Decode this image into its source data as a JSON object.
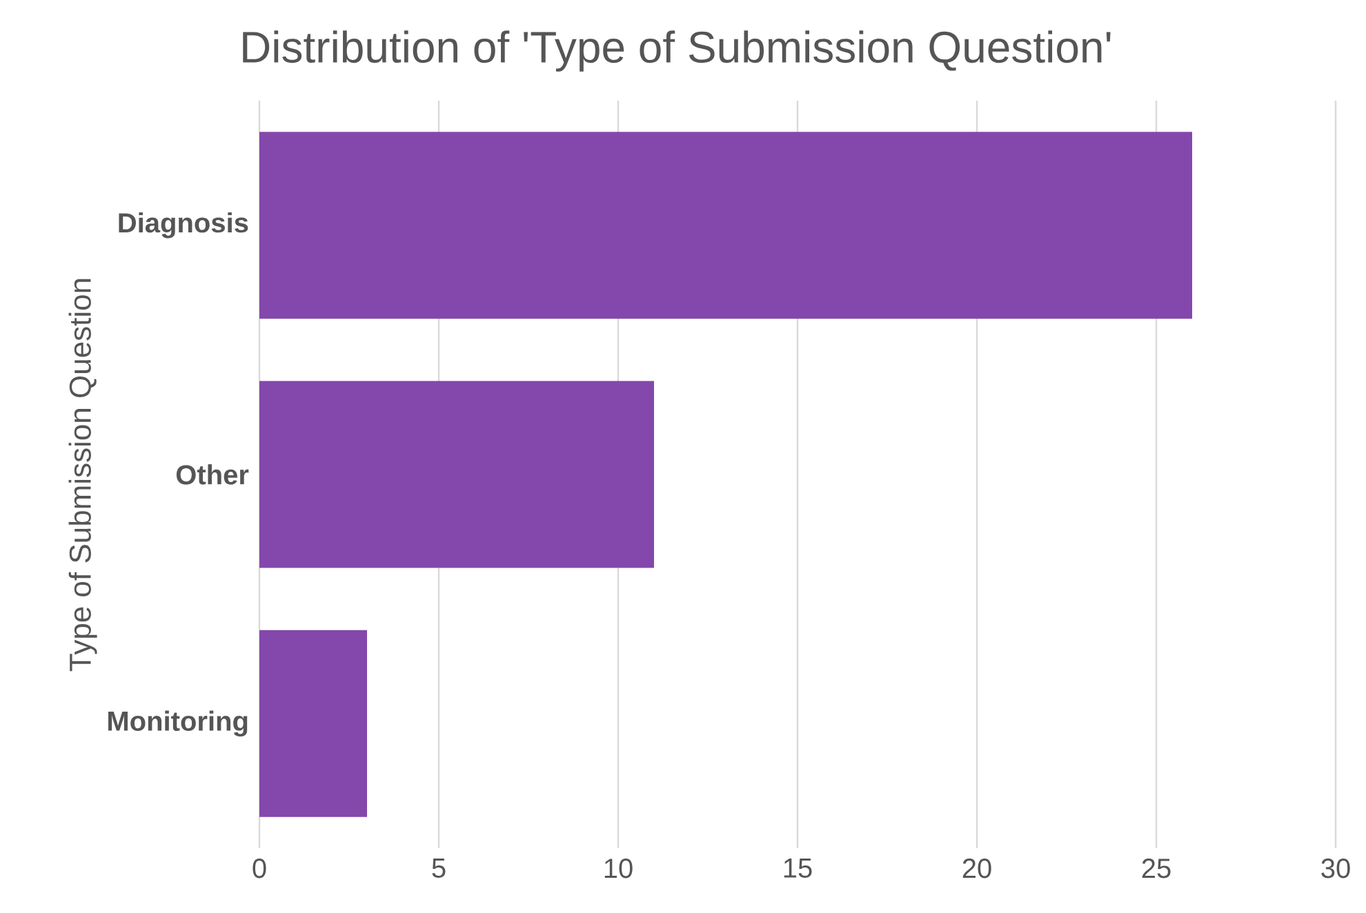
{
  "chart_data": {
    "type": "bar",
    "orientation": "horizontal",
    "title": "Distribution of 'Type of Submission Question'",
    "ylabel": "Type of Submission Question",
    "categories": [
      "Diagnosis",
      "Other",
      "Monitoring"
    ],
    "values": [
      26,
      11,
      3
    ],
    "color": "#8447ab",
    "xlim": [
      0,
      30
    ],
    "xticks": [
      0,
      5,
      10,
      15,
      20,
      25,
      30
    ],
    "grid": "x"
  }
}
